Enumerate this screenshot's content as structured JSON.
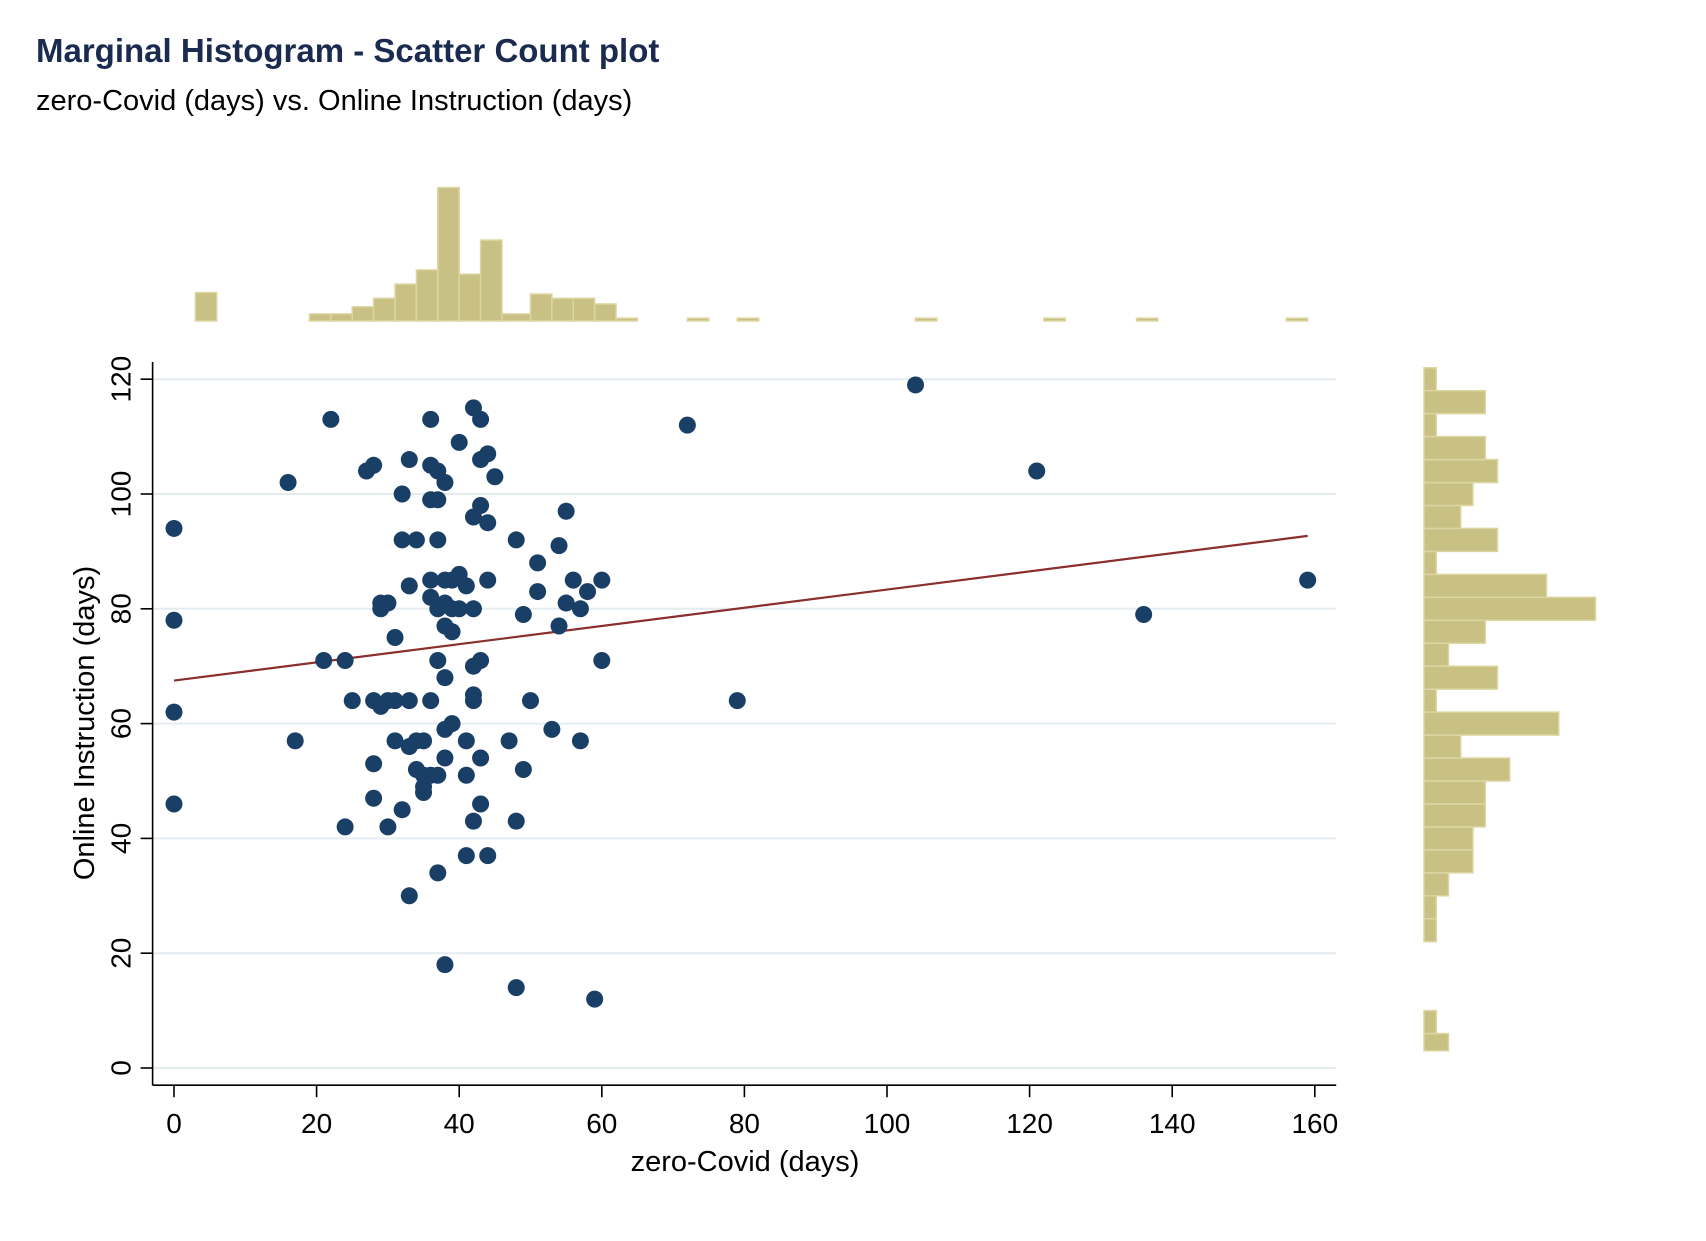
{
  "chart_data": {
    "type": "scatter",
    "title": "Marginal Histogram - Scatter Count plot",
    "subtitle": "zero-Covid (days) vs. Online Instruction (days)",
    "xlabel": "zero-Covid (days)",
    "ylabel": "Online Instruction (days)",
    "xlim": [
      -3,
      163
    ],
    "ylim": [
      -3,
      123
    ],
    "xticks": [
      0,
      20,
      40,
      60,
      80,
      100,
      120,
      140,
      160
    ],
    "yticks": [
      0,
      20,
      40,
      60,
      80,
      100,
      120
    ],
    "grid": "horizontal",
    "colors": {
      "points": "#1a3f66",
      "fit_line": "#8b2e2e",
      "histogram": "#c8c183",
      "histogram_edge": "#ddd6a3",
      "grid": "#e4ecf0",
      "title": "#1a2b4f"
    },
    "points": [
      [
        0,
        94
      ],
      [
        0,
        78
      ],
      [
        0,
        62
      ],
      [
        0,
        46
      ],
      [
        16,
        102
      ],
      [
        17,
        57
      ],
      [
        21,
        71
      ],
      [
        22,
        113
      ],
      [
        24,
        71
      ],
      [
        24,
        42
      ],
      [
        25,
        64
      ],
      [
        27,
        104
      ],
      [
        28,
        105
      ],
      [
        28,
        64
      ],
      [
        28,
        53
      ],
      [
        28,
        47
      ],
      [
        29,
        81
      ],
      [
        29,
        80
      ],
      [
        29,
        63
      ],
      [
        30,
        81
      ],
      [
        30,
        64
      ],
      [
        30,
        42
      ],
      [
        31,
        75
      ],
      [
        31,
        64
      ],
      [
        31,
        57
      ],
      [
        32,
        100
      ],
      [
        32,
        92
      ],
      [
        32,
        45
      ],
      [
        33,
        106
      ],
      [
        33,
        84
      ],
      [
        33,
        64
      ],
      [
        33,
        56
      ],
      [
        33,
        30
      ],
      [
        34,
        92
      ],
      [
        34,
        57
      ],
      [
        34,
        52
      ],
      [
        35,
        57
      ],
      [
        35,
        51
      ],
      [
        35,
        49
      ],
      [
        35,
        48
      ],
      [
        36,
        113
      ],
      [
        36,
        105
      ],
      [
        36,
        99
      ],
      [
        36,
        85
      ],
      [
        36,
        82
      ],
      [
        36,
        64
      ],
      [
        36,
        51
      ],
      [
        37,
        104
      ],
      [
        37,
        99
      ],
      [
        37,
        92
      ],
      [
        37,
        80
      ],
      [
        37,
        71
      ],
      [
        37,
        51
      ],
      [
        37,
        34
      ],
      [
        38,
        102
      ],
      [
        38,
        85
      ],
      [
        38,
        81
      ],
      [
        38,
        77
      ],
      [
        38,
        68
      ],
      [
        38,
        59
      ],
      [
        38,
        54
      ],
      [
        38,
        18
      ],
      [
        39,
        85
      ],
      [
        39,
        80
      ],
      [
        39,
        76
      ],
      [
        39,
        60
      ],
      [
        40,
        109
      ],
      [
        40,
        86
      ],
      [
        40,
        80
      ],
      [
        41,
        84
      ],
      [
        41,
        57
      ],
      [
        41,
        51
      ],
      [
        41,
        37
      ],
      [
        42,
        115
      ],
      [
        42,
        96
      ],
      [
        42,
        80
      ],
      [
        42,
        70
      ],
      [
        42,
        65
      ],
      [
        42,
        64
      ],
      [
        42,
        43
      ],
      [
        43,
        113
      ],
      [
        43,
        106
      ],
      [
        43,
        98
      ],
      [
        43,
        71
      ],
      [
        43,
        54
      ],
      [
        43,
        46
      ],
      [
        44,
        107
      ],
      [
        44,
        95
      ],
      [
        44,
        85
      ],
      [
        44,
        37
      ],
      [
        45,
        103
      ],
      [
        47,
        57
      ],
      [
        48,
        92
      ],
      [
        48,
        43
      ],
      [
        48,
        14
      ],
      [
        49,
        79
      ],
      [
        49,
        52
      ],
      [
        50,
        64
      ],
      [
        51,
        88
      ],
      [
        51,
        83
      ],
      [
        53,
        59
      ],
      [
        54,
        91
      ],
      [
        54,
        77
      ],
      [
        55,
        97
      ],
      [
        55,
        81
      ],
      [
        56,
        85
      ],
      [
        57,
        80
      ],
      [
        57,
        57
      ],
      [
        58,
        83
      ],
      [
        59,
        12
      ],
      [
        60,
        85
      ],
      [
        60,
        71
      ],
      [
        72,
        112
      ],
      [
        79,
        64
      ],
      [
        104,
        119
      ],
      [
        121,
        104
      ],
      [
        136,
        79
      ],
      [
        159,
        85
      ]
    ],
    "fit_line": {
      "x": [
        0,
        159
      ],
      "y": [
        67.5,
        92.7
      ]
    },
    "x_hist_bins": [
      {
        "x0": 3,
        "x1": 6,
        "count": 2
      },
      {
        "x0": 19,
        "x1": 22,
        "count": 0.5
      },
      {
        "x0": 22,
        "x1": 25,
        "count": 0.5
      },
      {
        "x0": 25,
        "x1": 28,
        "count": 1
      },
      {
        "x0": 28,
        "x1": 31,
        "count": 1.6
      },
      {
        "x0": 31,
        "x1": 34,
        "count": 2.6
      },
      {
        "x0": 34,
        "x1": 37,
        "count": 3.6
      },
      {
        "x0": 37,
        "x1": 40,
        "count": 9.4
      },
      {
        "x0": 40,
        "x1": 43,
        "count": 3.3
      },
      {
        "x0": 43,
        "x1": 46,
        "count": 5.7
      },
      {
        "x0": 46,
        "x1": 50,
        "count": 0.5
      },
      {
        "x0": 50,
        "x1": 53,
        "count": 1.9
      },
      {
        "x0": 53,
        "x1": 56,
        "count": 1.6
      },
      {
        "x0": 56,
        "x1": 59,
        "count": 1.6
      },
      {
        "x0": 59,
        "x1": 62,
        "count": 1.2
      },
      {
        "x0": 62,
        "x1": 65,
        "count": 0.2
      },
      {
        "x0": 72,
        "x1": 75,
        "count": 0.2
      },
      {
        "x0": 79,
        "x1": 82,
        "count": 0.2
      },
      {
        "x0": 104,
        "x1": 107,
        "count": 0.2
      },
      {
        "x0": 122,
        "x1": 125,
        "count": 0.2
      },
      {
        "x0": 135,
        "x1": 138,
        "count": 0.2
      },
      {
        "x0": 156,
        "x1": 159,
        "count": 0.2
      }
    ],
    "y_hist_bins": [
      {
        "y0": 3,
        "y1": 6,
        "count": 1
      },
      {
        "y0": 6,
        "y1": 10,
        "count": 0.5
      },
      {
        "y0": 22,
        "y1": 26,
        "count": 0.5
      },
      {
        "y0": 26,
        "y1": 30,
        "count": 0.5
      },
      {
        "y0": 30,
        "y1": 34,
        "count": 1
      },
      {
        "y0": 34,
        "y1": 38,
        "count": 2
      },
      {
        "y0": 38,
        "y1": 42,
        "count": 2
      },
      {
        "y0": 42,
        "y1": 46,
        "count": 2.5
      },
      {
        "y0": 46,
        "y1": 50,
        "count": 2.5
      },
      {
        "y0": 50,
        "y1": 54,
        "count": 3.5
      },
      {
        "y0": 54,
        "y1": 58,
        "count": 1.5
      },
      {
        "y0": 58,
        "y1": 62,
        "count": 5.5
      },
      {
        "y0": 62,
        "y1": 66,
        "count": 0.5
      },
      {
        "y0": 66,
        "y1": 70,
        "count": 3
      },
      {
        "y0": 70,
        "y1": 74,
        "count": 1
      },
      {
        "y0": 74,
        "y1": 78,
        "count": 2.5
      },
      {
        "y0": 78,
        "y1": 82,
        "count": 7
      },
      {
        "y0": 82,
        "y1": 86,
        "count": 5
      },
      {
        "y0": 86,
        "y1": 90,
        "count": 0.5
      },
      {
        "y0": 90,
        "y1": 94,
        "count": 3
      },
      {
        "y0": 94,
        "y1": 98,
        "count": 1.5
      },
      {
        "y0": 98,
        "y1": 102,
        "count": 2
      },
      {
        "y0": 102,
        "y1": 106,
        "count": 3
      },
      {
        "y0": 106,
        "y1": 110,
        "count": 2.5
      },
      {
        "y0": 110,
        "y1": 114,
        "count": 0.5
      },
      {
        "y0": 114,
        "y1": 118,
        "count": 2.5
      },
      {
        "y0": 118,
        "y1": 122,
        "count": 0.5
      }
    ]
  }
}
